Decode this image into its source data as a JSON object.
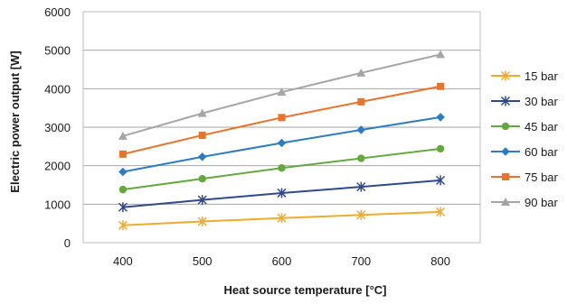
{
  "chart_data": {
    "type": "line",
    "xlabel": "Heat source temperature [°C]",
    "ylabel": "Electric power output [W]",
    "x": [
      400,
      500,
      600,
      700,
      800
    ],
    "xticks": [
      "400",
      "500",
      "600",
      "700",
      "800"
    ],
    "xlim": [
      350,
      850
    ],
    "ylim": [
      0,
      6000
    ],
    "yticks": [
      "0",
      "1000",
      "2000",
      "3000",
      "4000",
      "5000",
      "6000"
    ],
    "grid": true,
    "legend_position": "right",
    "series": [
      {
        "name": "15 bar",
        "color": "#f0ab2c",
        "marker": "star",
        "values": [
          450,
          550,
          640,
          720,
          800
        ]
      },
      {
        "name": "30 bar",
        "color": "#2f4a8c",
        "marker": "star",
        "values": [
          920,
          1110,
          1290,
          1450,
          1620
        ]
      },
      {
        "name": "45 bar",
        "color": "#63a83c",
        "marker": "circle",
        "values": [
          1380,
          1660,
          1940,
          2190,
          2440
        ]
      },
      {
        "name": "60 bar",
        "color": "#2c7cc4",
        "marker": "diamond",
        "values": [
          1840,
          2230,
          2590,
          2930,
          3260
        ]
      },
      {
        "name": "75 bar",
        "color": "#e8732a",
        "marker": "square",
        "values": [
          2300,
          2790,
          3250,
          3660,
          4060
        ]
      },
      {
        "name": "90 bar",
        "color": "#a5a5a5",
        "marker": "triangle",
        "values": [
          2770,
          3360,
          3910,
          4410,
          4890
        ]
      }
    ]
  }
}
